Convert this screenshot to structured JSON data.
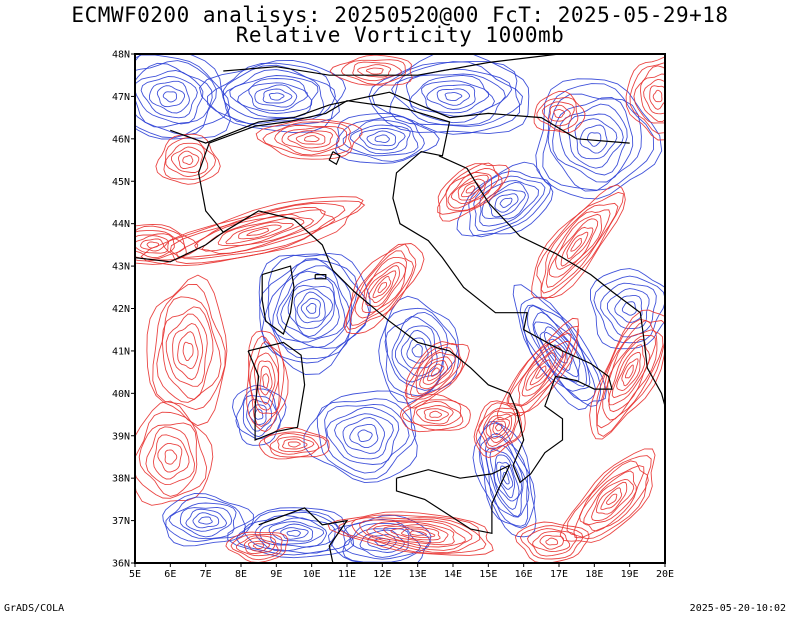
{
  "header": {
    "title_line1": "ECMWF0200 analisys: 20250520@00 FcT: 2025-05-29+18",
    "title_line2": "Relative Vorticity 1000mb"
  },
  "footer": {
    "left": "GrADS/COLA",
    "right": "2025-05-20-10:02"
  },
  "colors": {
    "positive_vorticity": "#e8312f",
    "negative_vorticity": "#2b3fd6",
    "coastline": "#000000",
    "frame": "#000000"
  },
  "chart_data": {
    "type": "heatmap",
    "title": "Relative Vorticity 1000mb",
    "x_ticks": [
      "5E",
      "6E",
      "7E",
      "8E",
      "9E",
      "10E",
      "11E",
      "12E",
      "13E",
      "14E",
      "15E",
      "16E",
      "17E",
      "18E",
      "19E",
      "20E"
    ],
    "y_ticks": [
      "36N",
      "37N",
      "38N",
      "39N",
      "40N",
      "41N",
      "42N",
      "43N",
      "44N",
      "45N",
      "46N",
      "47N",
      "48N"
    ],
    "xlim": [
      5,
      20
    ],
    "ylim": [
      36,
      48
    ],
    "legend": "none",
    "contours": "red = cyclonic (positive), blue = anticyclonic (negative)"
  }
}
